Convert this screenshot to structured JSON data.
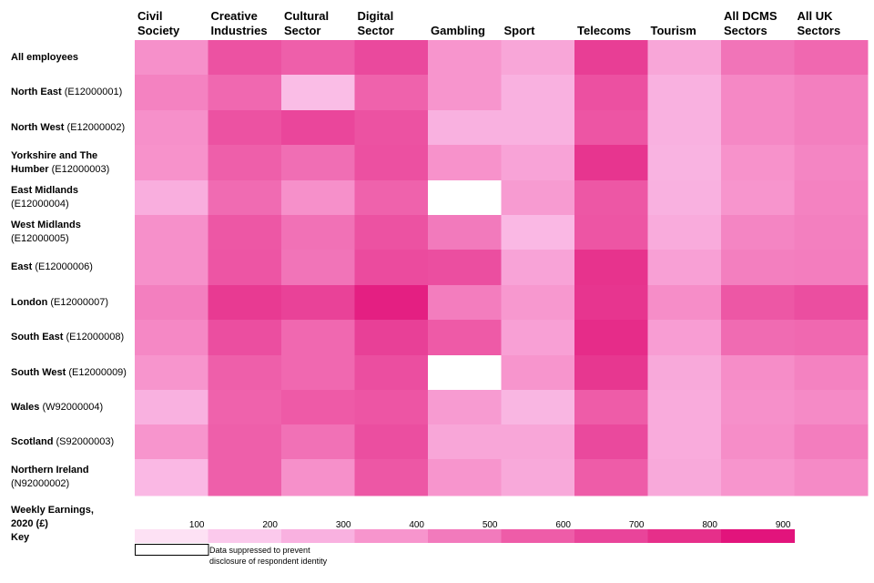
{
  "chart_data": {
    "type": "heatmap",
    "title": "",
    "columns": [
      "Civil Society",
      "Creative Industries",
      "Cultural Sector",
      "Digital Sector",
      "Gambling",
      "Sport",
      "Telecoms",
      "Tourism",
      "All DCMS Sectors",
      "All UK Sectors"
    ],
    "rows": [
      {
        "name": "All employees",
        "code": ""
      },
      {
        "name": "North East",
        "code": "(E12000001)"
      },
      {
        "name": "North West",
        "code": "(E12000002)"
      },
      {
        "name": "Yorkshire and The Humber",
        "code": "(E12000003)"
      },
      {
        "name": "East Midlands",
        "code": "(E12000004)"
      },
      {
        "name": "West Midlands",
        "code": "(E12000005)"
      },
      {
        "name": "East",
        "code": "(E12000006)"
      },
      {
        "name": "London",
        "code": "(E12000007)"
      },
      {
        "name": "South East",
        "code": "(E12000008)"
      },
      {
        "name": "South West",
        "code": "(E12000009)"
      },
      {
        "name": "Wales",
        "code": "(W92000004)"
      },
      {
        "name": "Scotland",
        "code": "(S92000003)"
      },
      {
        "name": "Northern Ireland",
        "code": "(N92000002)"
      }
    ],
    "values": [
      [
        420,
        640,
        590,
        680,
        400,
        340,
        730,
        340,
        520,
        560
      ],
      [
        470,
        560,
        250,
        580,
        400,
        300,
        650,
        300,
        450,
        480
      ],
      [
        420,
        640,
        690,
        640,
        300,
        300,
        630,
        300,
        450,
        480
      ],
      [
        410,
        590,
        540,
        650,
        410,
        350,
        770,
        290,
        410,
        460
      ],
      [
        310,
        550,
        420,
        580,
        null,
        380,
        620,
        300,
        400,
        470
      ],
      [
        420,
        620,
        530,
        640,
        500,
        270,
        630,
        320,
        460,
        480
      ],
      [
        420,
        630,
        520,
        670,
        660,
        350,
        780,
        360,
        480,
        490
      ],
      [
        480,
        750,
        710,
        860,
        490,
        390,
        770,
        430,
        620,
        660
      ],
      [
        450,
        660,
        560,
        720,
        610,
        360,
        810,
        370,
        550,
        560
      ],
      [
        400,
        590,
        560,
        660,
        null,
        400,
        760,
        330,
        430,
        470
      ],
      [
        300,
        580,
        610,
        630,
        380,
        280,
        600,
        320,
        420,
        440
      ],
      [
        400,
        590,
        530,
        660,
        340,
        340,
        680,
        320,
        430,
        490
      ],
      [
        270,
        590,
        420,
        620,
        400,
        330,
        600,
        330,
        400,
        440
      ]
    ],
    "key_title": "Weekly Earnings, 2020 (£) Key",
    "key_title_lines": [
      "Weekly Earnings,",
      "2020 (£)",
      "Key"
    ],
    "key_ticks": [
      100,
      200,
      300,
      400,
      500,
      600,
      700,
      800,
      900
    ],
    "key_colors": [
      "#FDE1F4",
      "#FBC9EC",
      "#F9B1E0",
      "#F795CD",
      "#F27ABC",
      "#EE5CA8",
      "#E9449A",
      "#E62F8A",
      "#E2147C"
    ],
    "suppressed_label": "Data suppressed to prevent disclosure of respondent identity",
    "suppressed_color": "#FFFFFF"
  }
}
